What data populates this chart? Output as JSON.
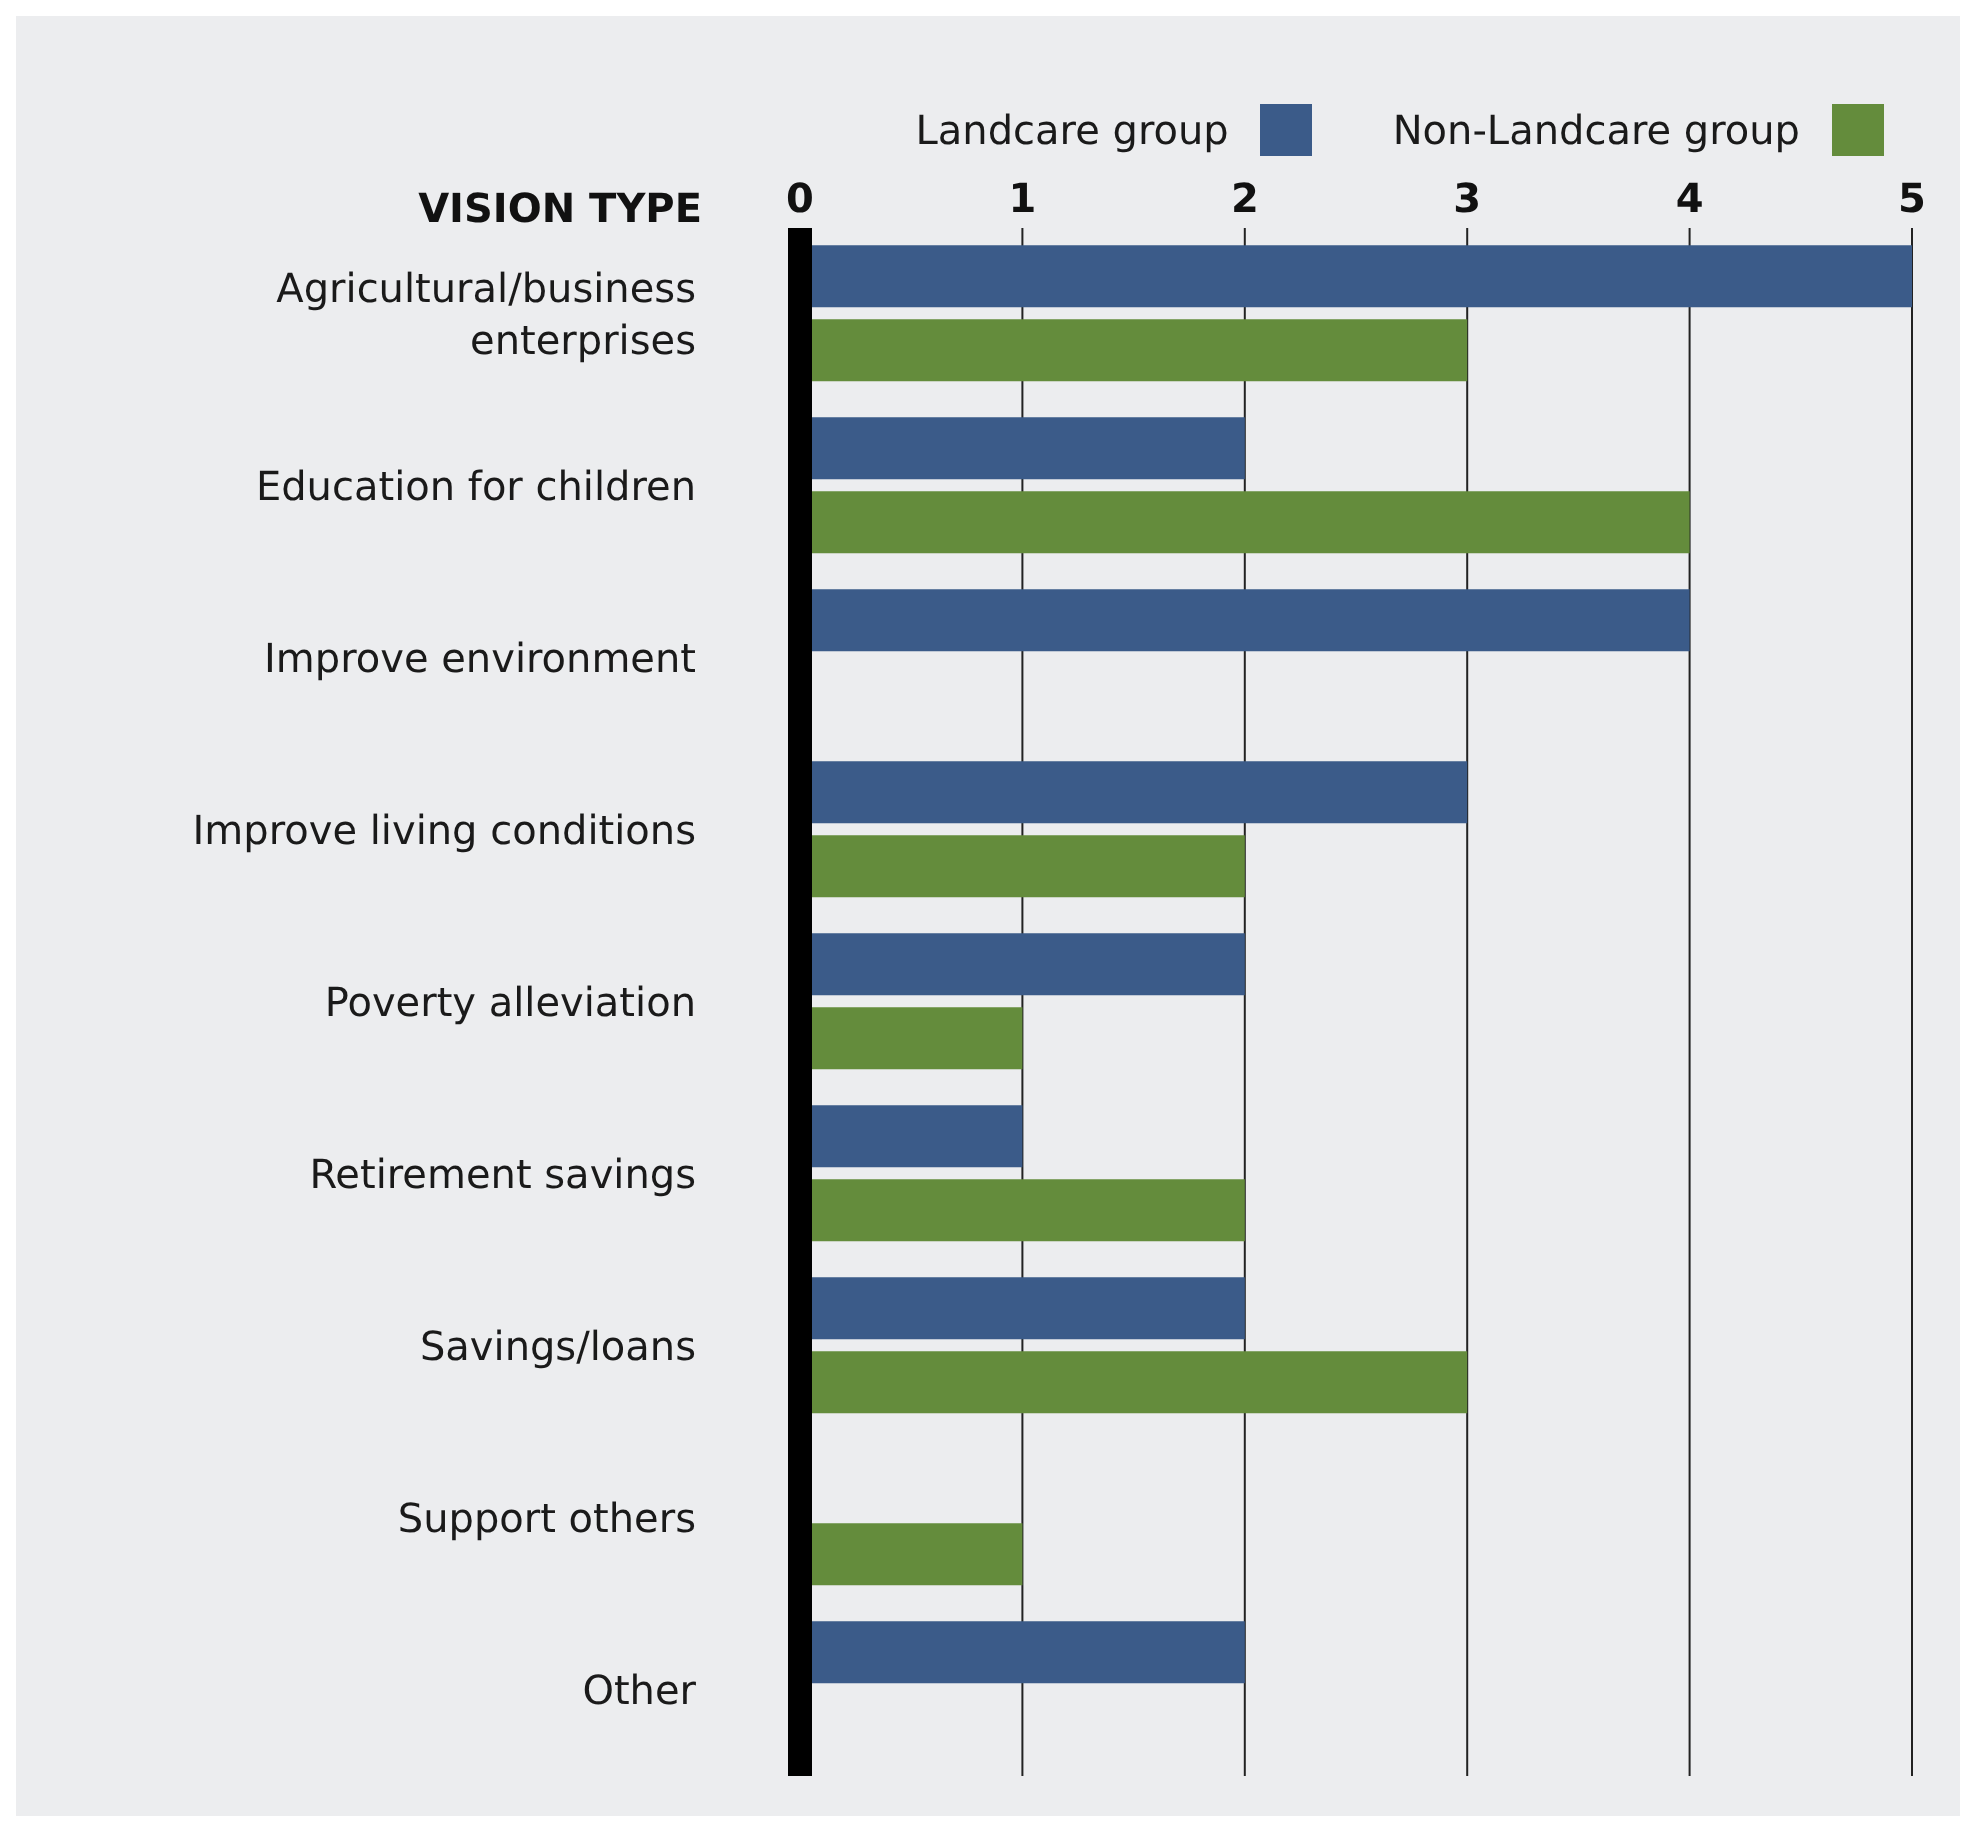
{
  "chart_data": {
    "type": "bar",
    "orientation": "horizontal",
    "ylabel": "VISION TYPE",
    "categories": [
      "Agricultural/business enterprises",
      "Education for children",
      "Improve environment",
      "Improve living conditions",
      "Poverty alleviation",
      "Retirement savings",
      "Savings/loans",
      "Support others",
      "Other"
    ],
    "series": [
      {
        "name": "Landcare group",
        "color": "#3b5b89",
        "values": [
          5,
          2,
          4,
          3,
          2,
          1,
          2,
          0,
          2
        ]
      },
      {
        "name": "Non-Landcare group",
        "color": "#648c3c",
        "values": [
          3,
          4,
          0,
          2,
          1,
          2,
          3,
          1,
          0
        ]
      }
    ],
    "xlim": [
      0,
      5
    ],
    "xticks": [
      0,
      1,
      2,
      3,
      4,
      5
    ],
    "grid": "x",
    "legend": "top right"
  }
}
